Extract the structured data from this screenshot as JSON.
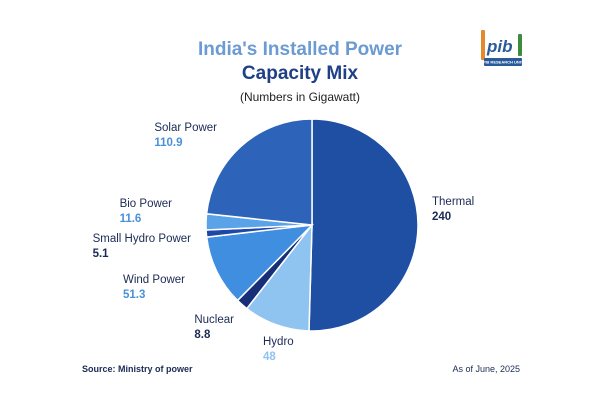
{
  "title_line1": "India's Installed Power",
  "title_line2": "Capacity Mix",
  "subtitle": "(Numbers in Gigawatt)",
  "footer": {
    "source": "Source: Ministry of power",
    "date": "As of June, 2025"
  },
  "logo": {
    "text": "pib",
    "ribbon": "PIB RESEARCH UNIT",
    "colors": [
      "#e38b2c",
      "#2a5a9a",
      "#3d8c3d"
    ]
  },
  "chart_data": {
    "type": "pie",
    "title": "India's Installed Power Capacity Mix",
    "subtitle": "(Numbers in Gigawatt)",
    "unit": "Gigawatt",
    "slices": [
      {
        "label": "Thermal",
        "value": 240,
        "display": "240",
        "color": "#1f4fa3",
        "value_color": "#1c2a55"
      },
      {
        "label": "Hydro",
        "value": 48,
        "display": "48",
        "color": "#8fc3f0",
        "value_color": "#8fc3f0"
      },
      {
        "label": "Nuclear",
        "value": 8.8,
        "display": "8.8",
        "color": "#162f78",
        "value_color": "#1c2a55"
      },
      {
        "label": "Wind Power",
        "value": 51.3,
        "display": "51.3",
        "color": "#3f8ee0",
        "value_color": "#4a90d9"
      },
      {
        "label": "Small Hydro Power",
        "value": 5.1,
        "display": "5.1",
        "color": "#1e47a8",
        "value_color": "#1c2a55"
      },
      {
        "label": "Bio Power",
        "value": 11.6,
        "display": "11.6",
        "color": "#5ba3e8",
        "value_color": "#4a90d9"
      },
      {
        "label": "Solar Power",
        "value": 110.9,
        "display": "110.9",
        "color": "#2d63b8",
        "value_color": "#4a90d9"
      }
    ],
    "legend": "none",
    "data_labels": "outside"
  }
}
